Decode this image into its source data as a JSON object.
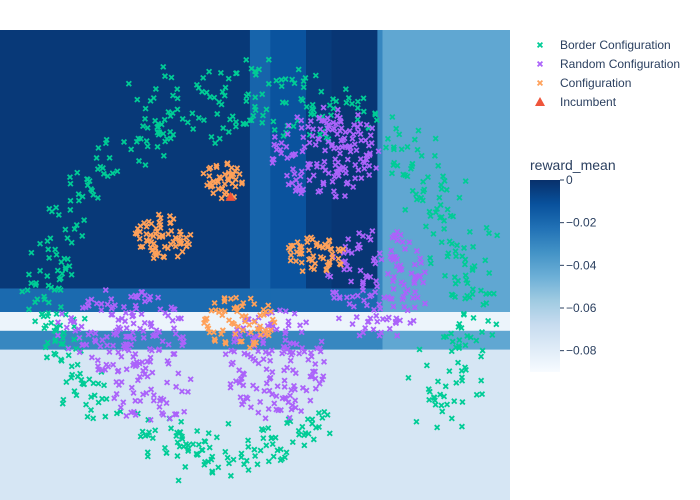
{
  "chart_data": {
    "type": "scatter",
    "title": "",
    "xlabel": "",
    "ylabel": "",
    "axes_visible": false,
    "background": "heatmap",
    "colorbar": {
      "title": "reward_mean",
      "range": [
        -0.09,
        0
      ],
      "ticks": [
        0,
        -0.02,
        -0.04,
        -0.06,
        -0.08
      ],
      "tick_labels": [
        "0",
        "−0.02",
        "−0.04",
        "−0.06",
        "−0.08"
      ],
      "colorscale": [
        "#08306b",
        "#08519c",
        "#2171b5",
        "#4292c6",
        "#6baed6",
        "#9ecae1",
        "#c6dbef",
        "#deebf7",
        "#f7fbff"
      ]
    },
    "heatmap": {
      "vertical_bands": [
        {
          "x": [
            0.0,
            0.49
          ],
          "level": -0.003
        },
        {
          "x": [
            0.49,
            0.53
          ],
          "level": -0.018
        },
        {
          "x": [
            0.53,
            0.6
          ],
          "level": -0.012
        },
        {
          "x": [
            0.6,
            0.65
          ],
          "level": -0.004
        },
        {
          "x": [
            0.65,
            0.74
          ],
          "level": -0.002
        },
        {
          "x": [
            0.74,
            0.75
          ],
          "level": -0.03
        },
        {
          "x": [
            0.75,
            1.0
          ],
          "level": -0.042
        }
      ],
      "horizontal_bands": [
        {
          "y": [
            0.0,
            0.55
          ],
          "level": 0
        },
        {
          "y": [
            0.55,
            0.6
          ],
          "level": -0.02
        },
        {
          "y": [
            0.6,
            0.64
          ],
          "level": -0.085
        },
        {
          "y": [
            0.64,
            0.68
          ],
          "level": -0.03
        },
        {
          "y": [
            0.68,
            1.0
          ],
          "level": -0.075
        }
      ]
    },
    "legend": {
      "position": "top-right",
      "items": [
        {
          "name": "Border Configuration",
          "color": "#00cc96",
          "symbol": "x"
        },
        {
          "name": "Random Configuration",
          "color": "#ab63fa",
          "symbol": "x"
        },
        {
          "name": "Configuration",
          "color": "#ffa15a",
          "symbol": "x"
        },
        {
          "name": "Incumbent",
          "color": "#ef553b",
          "symbol": "triangle-up"
        }
      ]
    },
    "series": [
      {
        "name": "Border Configuration",
        "color": "#00cc96",
        "symbol": "x",
        "clusters": [
          {
            "type": "arc",
            "cx": 0.5,
            "cy": 0.62,
            "rx": 0.44,
            "ry": 0.44,
            "a0": 200,
            "a1": 290,
            "n": 120,
            "spread": 0.05
          },
          {
            "type": "arc",
            "cx": 0.5,
            "cy": 0.52,
            "rx": 0.38,
            "ry": 0.42,
            "a0": 235,
            "a1": 335,
            "n": 110,
            "spread": 0.05
          },
          {
            "type": "arc",
            "cx": 0.58,
            "cy": 0.58,
            "rx": 0.34,
            "ry": 0.36,
            "a0": -40,
            "a1": 40,
            "n": 130,
            "spread": 0.055
          },
          {
            "type": "arc",
            "cx": 0.44,
            "cy": 0.56,
            "rx": 0.3,
            "ry": 0.34,
            "a0": 50,
            "a1": 120,
            "n": 110,
            "spread": 0.055
          },
          {
            "type": "arc",
            "cx": 0.4,
            "cy": 0.58,
            "rx": 0.3,
            "ry": 0.3,
            "a0": 130,
            "a1": 200,
            "n": 110,
            "spread": 0.05
          }
        ]
      },
      {
        "name": "Random Configuration",
        "color": "#ab63fa",
        "symbol": "x",
        "clusters": [
          {
            "type": "blob",
            "cx": 0.64,
            "cy": 0.26,
            "rx": 0.11,
            "ry": 0.1,
            "n": 160
          },
          {
            "type": "blob",
            "cx": 0.74,
            "cy": 0.54,
            "rx": 0.1,
            "ry": 0.12,
            "n": 140
          },
          {
            "type": "blob",
            "cx": 0.54,
            "cy": 0.71,
            "rx": 0.1,
            "ry": 0.12,
            "n": 150
          },
          {
            "type": "blob",
            "cx": 0.24,
            "cy": 0.64,
            "rx": 0.13,
            "ry": 0.09,
            "n": 150
          },
          {
            "type": "blob",
            "cx": 0.3,
            "cy": 0.77,
            "rx": 0.08,
            "ry": 0.07,
            "n": 50
          }
        ]
      },
      {
        "name": "Configuration",
        "color": "#ffa15a",
        "symbol": "x",
        "clusters": [
          {
            "type": "blob",
            "cx": 0.32,
            "cy": 0.44,
            "rx": 0.055,
            "ry": 0.05,
            "n": 70
          },
          {
            "type": "blob",
            "cx": 0.44,
            "cy": 0.32,
            "rx": 0.045,
            "ry": 0.04,
            "n": 45
          },
          {
            "type": "blob",
            "cx": 0.62,
            "cy": 0.48,
            "rx": 0.06,
            "ry": 0.04,
            "n": 55
          },
          {
            "type": "blob",
            "cx": 0.47,
            "cy": 0.62,
            "rx": 0.07,
            "ry": 0.06,
            "n": 70
          }
        ]
      },
      {
        "name": "Incumbent",
        "color": "#ef553b",
        "symbol": "triangle-up",
        "points": [
          [
            0.452,
            0.355
          ]
        ]
      }
    ]
  }
}
